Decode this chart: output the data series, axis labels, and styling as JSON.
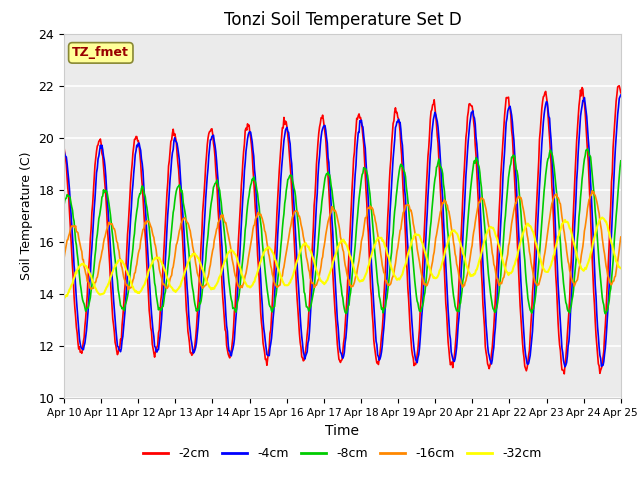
{
  "title": "Tonzi Soil Temperature Set D",
  "xlabel": "Time",
  "ylabel": "Soil Temperature (C)",
  "label_box": "TZ_fmet",
  "label_box_color": "#ffff99",
  "label_box_text_color": "#990000",
  "ylim": [
    10,
    24
  ],
  "yticks": [
    10,
    12,
    14,
    16,
    18,
    20,
    22,
    24
  ],
  "series": [
    {
      "label": "-2cm",
      "color": "#ff0000",
      "lw": 1.2
    },
    {
      "label": "-4cm",
      "color": "#0000ff",
      "lw": 1.2
    },
    {
      "label": "-8cm",
      "color": "#00cc00",
      "lw": 1.2
    },
    {
      "label": "-16cm",
      "color": "#ff8800",
      "lw": 1.2
    },
    {
      "label": "-32cm",
      "color": "#ffff00",
      "lw": 1.5
    }
  ],
  "xtick_labels": [
    "Apr 10",
    "Apr 11",
    "Apr 12",
    "Apr 13",
    "Apr 14",
    "Apr 15",
    "Apr 16",
    "Apr 17",
    "Apr 18",
    "Apr 19",
    "Apr 20",
    "Apr 21",
    "Apr 22",
    "Apr 23",
    "Apr 24",
    "Apr 25"
  ],
  "n_days": 15,
  "points_per_day": 48,
  "plot_bg_color": "#ebebeb"
}
